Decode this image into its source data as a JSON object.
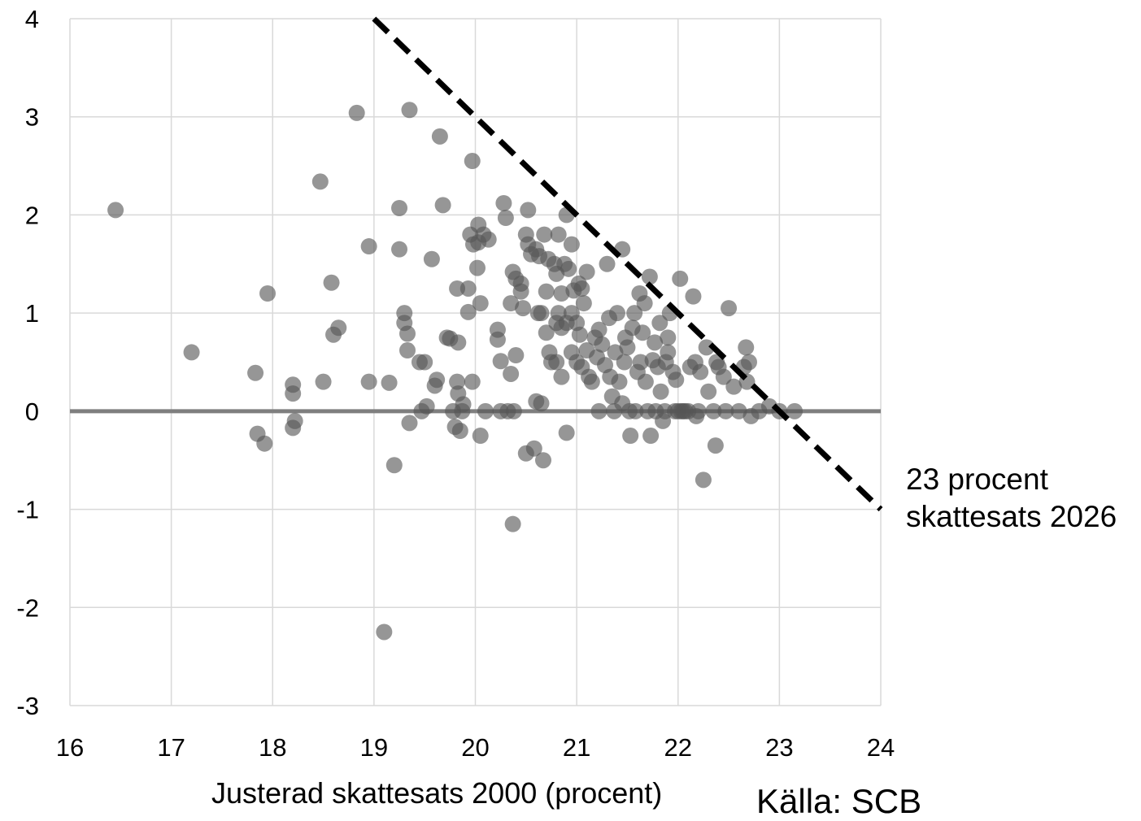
{
  "chart_data": {
    "type": "scatter",
    "title": "",
    "xlabel": "Justerad skattesats 2000 (procent)",
    "ylabel": "",
    "xlim": [
      16,
      24
    ],
    "ylim": [
      -3,
      4
    ],
    "x_ticks": [
      "16",
      "17",
      "18",
      "19",
      "20",
      "21",
      "22",
      "23",
      "24"
    ],
    "y_ticks": [
      "4",
      "3",
      "2",
      "1",
      "0",
      "-1",
      "-2",
      "-3"
    ],
    "grid": true,
    "point_color": "#555555",
    "zero_line_color": "#7f7f7f",
    "reference_line": {
      "label_lines": [
        "23 procent",
        "skattesats 2026"
      ],
      "x": [
        19.0,
        24.0
      ],
      "y": [
        4.0,
        -1.0
      ],
      "style": "dashed",
      "color": "#000000"
    },
    "series": [
      {
        "points": [
          [
            16.45,
            2.05
          ],
          [
            17.2,
            0.6
          ],
          [
            17.83,
            0.39
          ],
          [
            17.85,
            -0.23
          ],
          [
            17.92,
            -0.33
          ],
          [
            17.95,
            1.2
          ],
          [
            18.2,
            0.27
          ],
          [
            18.2,
            0.18
          ],
          [
            18.22,
            -0.1
          ],
          [
            18.2,
            -0.17
          ],
          [
            18.47,
            2.34
          ],
          [
            18.5,
            0.3
          ],
          [
            18.58,
            1.31
          ],
          [
            18.6,
            0.78
          ],
          [
            18.65,
            0.85
          ],
          [
            18.83,
            3.04
          ],
          [
            18.95,
            1.68
          ],
          [
            18.95,
            0.3
          ],
          [
            19.1,
            -2.25
          ],
          [
            19.15,
            0.29
          ],
          [
            19.2,
            -0.55
          ],
          [
            19.25,
            2.07
          ],
          [
            19.25,
            1.65
          ],
          [
            19.3,
            1.0
          ],
          [
            19.3,
            0.9
          ],
          [
            19.33,
            0.79
          ],
          [
            19.33,
            0.62
          ],
          [
            19.35,
            -0.12
          ],
          [
            19.35,
            3.07
          ],
          [
            19.45,
            0.5
          ],
          [
            19.47,
            0.0
          ],
          [
            19.5,
            0.5
          ],
          [
            19.52,
            0.05
          ],
          [
            19.57,
            1.55
          ],
          [
            19.6,
            0.26
          ],
          [
            19.62,
            0.32
          ],
          [
            19.65,
            2.8
          ],
          [
            19.68,
            2.1
          ],
          [
            19.72,
            0.75
          ],
          [
            19.75,
            0.74
          ],
          [
            19.78,
            0.0
          ],
          [
            19.8,
            -0.16
          ],
          [
            19.83,
            0.7
          ],
          [
            19.82,
            1.25
          ],
          [
            19.83,
            0.18
          ],
          [
            19.82,
            0.3
          ],
          [
            19.85,
            -0.2
          ],
          [
            19.87,
            0.0
          ],
          [
            19.88,
            0.07
          ],
          [
            19.93,
            1.25
          ],
          [
            19.93,
            1.01
          ],
          [
            19.95,
            1.8
          ],
          [
            19.97,
            2.55
          ],
          [
            19.97,
            0.3
          ],
          [
            19.98,
            1.7
          ],
          [
            20.02,
            1.46
          ],
          [
            20.03,
            1.9
          ],
          [
            20.03,
            1.72
          ],
          [
            20.05,
            1.1
          ],
          [
            20.05,
            -0.25
          ],
          [
            20.08,
            1.8
          ],
          [
            20.1,
            0.0
          ],
          [
            20.13,
            1.75
          ],
          [
            20.22,
            0.83
          ],
          [
            20.22,
            0.73
          ],
          [
            20.25,
            0.51
          ],
          [
            20.25,
            0.0
          ],
          [
            20.28,
            2.12
          ],
          [
            20.3,
            1.97
          ],
          [
            20.32,
            0.0
          ],
          [
            20.35,
            1.1
          ],
          [
            20.35,
            0.38
          ],
          [
            20.37,
            -1.15
          ],
          [
            20.37,
            1.42
          ],
          [
            20.38,
            0.0
          ],
          [
            20.4,
            1.35
          ],
          [
            20.4,
            0.57
          ],
          [
            20.45,
            1.22
          ],
          [
            20.45,
            1.3
          ],
          [
            20.47,
            1.05
          ],
          [
            20.5,
            1.8
          ],
          [
            20.5,
            -0.43
          ],
          [
            20.52,
            1.7
          ],
          [
            20.52,
            2.05
          ],
          [
            20.55,
            1.6
          ],
          [
            20.58,
            -0.38
          ],
          [
            20.6,
            0.1
          ],
          [
            20.6,
            1.65
          ],
          [
            20.62,
            1.0
          ],
          [
            20.63,
            1.58
          ],
          [
            20.65,
            0.08
          ],
          [
            20.65,
            1.0
          ],
          [
            20.67,
            -0.5
          ],
          [
            20.68,
            1.8
          ],
          [
            20.7,
            0.8
          ],
          [
            20.7,
            1.22
          ],
          [
            20.72,
            1.55
          ],
          [
            20.73,
            0.6
          ],
          [
            20.75,
            0.5
          ],
          [
            20.78,
            1.5
          ],
          [
            20.8,
            1.4
          ],
          [
            20.8,
            0.9
          ],
          [
            20.8,
            0.5
          ],
          [
            20.82,
            1.8
          ],
          [
            20.82,
            1.0
          ],
          [
            20.85,
            1.2
          ],
          [
            20.85,
            0.85
          ],
          [
            20.85,
            0.35
          ],
          [
            20.88,
            1.5
          ],
          [
            20.9,
            -0.22
          ],
          [
            20.9,
            0.9
          ],
          [
            20.9,
            2.0
          ],
          [
            20.92,
            1.45
          ],
          [
            20.95,
            1.0
          ],
          [
            20.95,
            0.6
          ],
          [
            20.95,
            1.7
          ],
          [
            20.97,
            1.23
          ],
          [
            21.0,
            0.9
          ],
          [
            21.0,
            0.5
          ],
          [
            21.02,
            1.3
          ],
          [
            21.03,
            0.78
          ],
          [
            21.05,
            0.45
          ],
          [
            21.05,
            1.25
          ],
          [
            21.07,
            1.1
          ],
          [
            21.1,
            1.42
          ],
          [
            21.1,
            0.62
          ],
          [
            21.12,
            0.35
          ],
          [
            21.15,
            0.3
          ],
          [
            21.18,
            0.75
          ],
          [
            21.2,
            0.55
          ],
          [
            21.22,
            0.0
          ],
          [
            21.22,
            0.83
          ],
          [
            21.25,
            0.68
          ],
          [
            21.28,
            0.47
          ],
          [
            21.3,
            1.5
          ],
          [
            21.32,
            0.95
          ],
          [
            21.33,
            0.35
          ],
          [
            21.35,
            0.15
          ],
          [
            21.37,
            0.0
          ],
          [
            21.38,
            0.6
          ],
          [
            21.4,
            1.0
          ],
          [
            21.42,
            0.3
          ],
          [
            21.45,
            1.65
          ],
          [
            21.45,
            0.08
          ],
          [
            21.47,
            0.5
          ],
          [
            21.48,
            0.75
          ],
          [
            21.5,
            0.65
          ],
          [
            21.52,
            0.0
          ],
          [
            21.53,
            -0.25
          ],
          [
            21.55,
            0.85
          ],
          [
            21.57,
            1.0
          ],
          [
            21.58,
            0.0
          ],
          [
            21.6,
            0.4
          ],
          [
            21.62,
            1.2
          ],
          [
            21.63,
            0.5
          ],
          [
            21.65,
            0.8
          ],
          [
            21.67,
            1.1
          ],
          [
            21.68,
            0.3
          ],
          [
            21.7,
            0.0
          ],
          [
            21.72,
            1.37
          ],
          [
            21.73,
            -0.25
          ],
          [
            21.75,
            0.52
          ],
          [
            21.77,
            0.7
          ],
          [
            21.78,
            0.0
          ],
          [
            21.8,
            0.45
          ],
          [
            21.82,
            0.9
          ],
          [
            21.83,
            0.2
          ],
          [
            21.85,
            -0.1
          ],
          [
            21.87,
            0.0
          ],
          [
            21.88,
            0.5
          ],
          [
            21.9,
            0.6
          ],
          [
            21.9,
            0.75
          ],
          [
            21.92,
            1.0
          ],
          [
            21.95,
            0.4
          ],
          [
            21.97,
            0.0
          ],
          [
            21.98,
            0.32
          ],
          [
            22.0,
            0.0
          ],
          [
            22.02,
            1.35
          ],
          [
            22.03,
            0.0
          ],
          [
            22.05,
            0.0
          ],
          [
            22.07,
            0.0
          ],
          [
            22.1,
            0.0
          ],
          [
            22.12,
            0.45
          ],
          [
            22.15,
            1.17
          ],
          [
            22.17,
            0.5
          ],
          [
            22.18,
            -0.05
          ],
          [
            22.2,
            0.0
          ],
          [
            22.22,
            0.4
          ],
          [
            22.25,
            -0.7
          ],
          [
            22.28,
            0.65
          ],
          [
            22.3,
            0.2
          ],
          [
            22.35,
            0.0
          ],
          [
            22.37,
            -0.35
          ],
          [
            22.38,
            0.5
          ],
          [
            22.4,
            0.45
          ],
          [
            22.45,
            0.35
          ],
          [
            22.47,
            0.0
          ],
          [
            22.5,
            1.05
          ],
          [
            22.55,
            0.25
          ],
          [
            22.6,
            0.0
          ],
          [
            22.65,
            0.45
          ],
          [
            22.67,
            0.65
          ],
          [
            22.68,
            0.3
          ],
          [
            22.7,
            0.5
          ],
          [
            22.72,
            -0.05
          ],
          [
            22.8,
            0.0
          ],
          [
            22.9,
            0.05
          ],
          [
            23.0,
            0.0
          ],
          [
            23.15,
            0.0
          ]
        ]
      }
    ]
  }
}
